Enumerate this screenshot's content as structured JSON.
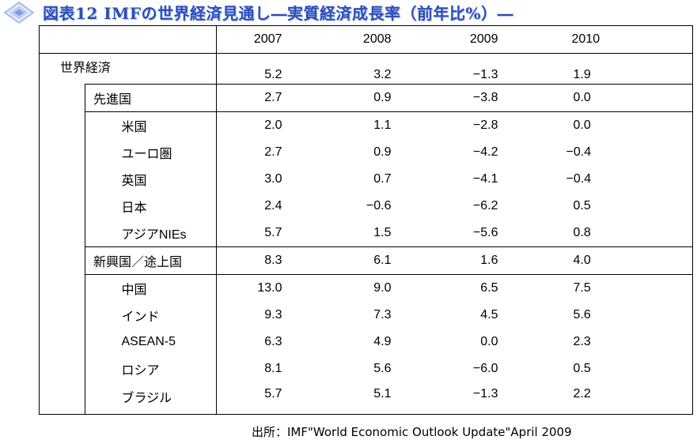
{
  "title": "図表12  IMFの世界経済見通し―実質経済成長率（前年比%）―",
  "header": {
    "years": [
      "2007",
      "2008",
      "2009",
      "2010"
    ]
  },
  "rows": [
    {
      "label": "世界経済",
      "values": [
        "5.2",
        "3.2",
        "−1.3",
        "1.9"
      ]
    },
    {
      "label": "先進国",
      "values": [
        "2.7",
        "0.9",
        "−3.8",
        "0.0"
      ]
    },
    {
      "label": "米国",
      "values": [
        "2.0",
        "1.1",
        "−2.8",
        "0.0"
      ]
    },
    {
      "label": "ユーロ圏",
      "values": [
        "2.7",
        "0.9",
        "−4.2",
        "−0.4"
      ]
    },
    {
      "label": "英国",
      "values": [
        "3.0",
        "0.7",
        "−4.1",
        "−0.4"
      ]
    },
    {
      "label": "日本",
      "values": [
        "2.4",
        "−0.6",
        "−6.2",
        "0.5"
      ]
    },
    {
      "label": "アジアNIEs",
      "values": [
        "5.7",
        "1.5",
        "−5.6",
        "0.8"
      ]
    },
    {
      "label": "新興国／途上国",
      "values": [
        "8.3",
        "6.1",
        "1.6",
        "4.0"
      ]
    },
    {
      "label": "中国",
      "values": [
        "13.0",
        "9.0",
        "6.5",
        "7.5"
      ]
    },
    {
      "label": "インド",
      "values": [
        "9.3",
        "7.3",
        "4.5",
        "5.6"
      ]
    },
    {
      "label": "ASEAN-5",
      "values": [
        "6.3",
        "4.9",
        "0.0",
        "2.3"
      ]
    },
    {
      "label": "ロシア",
      "values": [
        "8.1",
        "5.6",
        "−6.0",
        "0.5"
      ]
    },
    {
      "label": "ブラジル",
      "values": [
        "5.7",
        "5.1",
        "−1.3",
        "2.2"
      ]
    }
  ],
  "source": "出所：IMF\"World Economic Outlook Update\"April 2009",
  "colors": {
    "title": "#2c4fb8",
    "icon": "#8fb0e8"
  },
  "icons": {
    "title_marker": "diamond-icon"
  }
}
